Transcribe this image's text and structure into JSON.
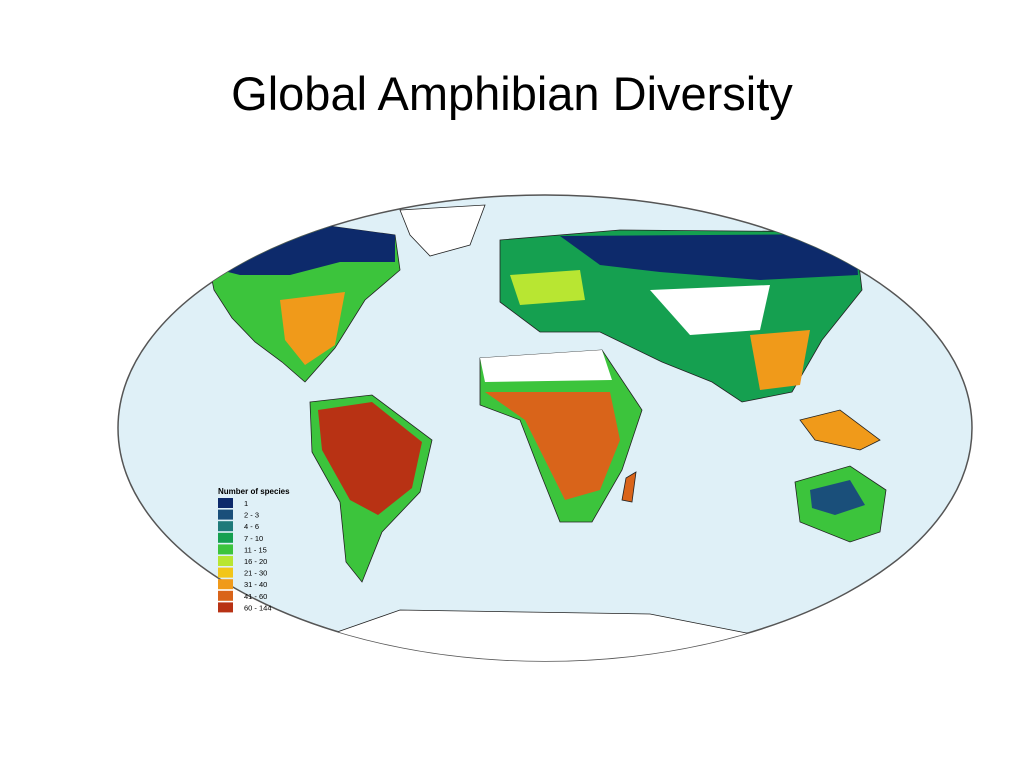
{
  "title": "Global Amphibian Diversity",
  "legend": {
    "title": "Number of species",
    "items": [
      {
        "label": "1",
        "color": "#0d2a6b"
      },
      {
        "label": "2 - 3",
        "color": "#1a4f7a"
      },
      {
        "label": "4 - 6",
        "color": "#1f7a7a"
      },
      {
        "label": "7 - 10",
        "color": "#15a050"
      },
      {
        "label": "11 - 15",
        "color": "#3cc43c"
      },
      {
        "label": "16 - 20",
        "color": "#b8e632"
      },
      {
        "label": "21 - 30",
        "color": "#f2c619"
      },
      {
        "label": "31 - 40",
        "color": "#f09a1a"
      },
      {
        "label": "41 - 60",
        "color": "#d9641a"
      },
      {
        "label": "60 - 144",
        "color": "#b83214"
      }
    ]
  }
}
